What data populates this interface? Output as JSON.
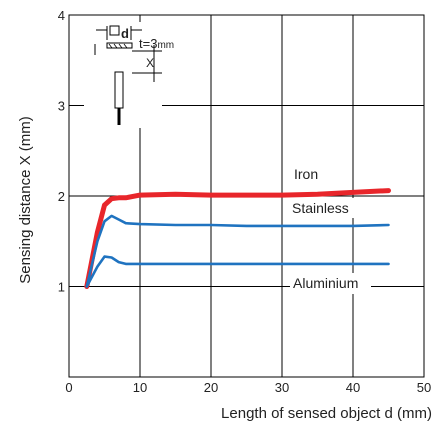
{
  "chart_data": {
    "type": "line",
    "xlabel": "Length of sensed object d (mm)",
    "ylabel": "Sensing distance X (mm)",
    "xlim": [
      0,
      50
    ],
    "ylim": [
      0,
      4
    ],
    "xticks": [
      0,
      10,
      20,
      30,
      40,
      50
    ],
    "yticks": [
      1,
      2,
      3,
      4
    ],
    "grid": true,
    "series": [
      {
        "name": "Iron",
        "color": "#e8262b",
        "x": [
          2.5,
          4,
          5,
          6,
          7,
          8,
          10,
          15,
          20,
          25,
          30,
          35,
          40,
          45
        ],
        "y": [
          1.0,
          1.6,
          1.9,
          1.97,
          1.98,
          1.98,
          2.01,
          2.02,
          2.01,
          2.01,
          2.01,
          2.02,
          2.04,
          2.06
        ]
      },
      {
        "name": "Stainless",
        "color": "#1f73c0",
        "x": [
          2.5,
          4,
          5,
          6,
          7,
          8,
          10,
          15,
          20,
          25,
          30,
          35,
          40,
          45
        ],
        "y": [
          1.0,
          1.5,
          1.72,
          1.78,
          1.74,
          1.7,
          1.69,
          1.68,
          1.68,
          1.67,
          1.67,
          1.67,
          1.67,
          1.68
        ]
      },
      {
        "name": "Aluminium",
        "color": "#1f73c0",
        "x": [
          2.5,
          4,
          5,
          6,
          7,
          8,
          10,
          15,
          20,
          25,
          30,
          35,
          40,
          45
        ],
        "y": [
          1.0,
          1.22,
          1.33,
          1.32,
          1.27,
          1.25,
          1.25,
          1.25,
          1.25,
          1.25,
          1.25,
          1.25,
          1.25,
          1.25
        ]
      }
    ],
    "inset": {
      "symbol": "□d",
      "dimension_label": "X",
      "thickness_label": "t=3",
      "thickness_unit": "mm"
    }
  }
}
